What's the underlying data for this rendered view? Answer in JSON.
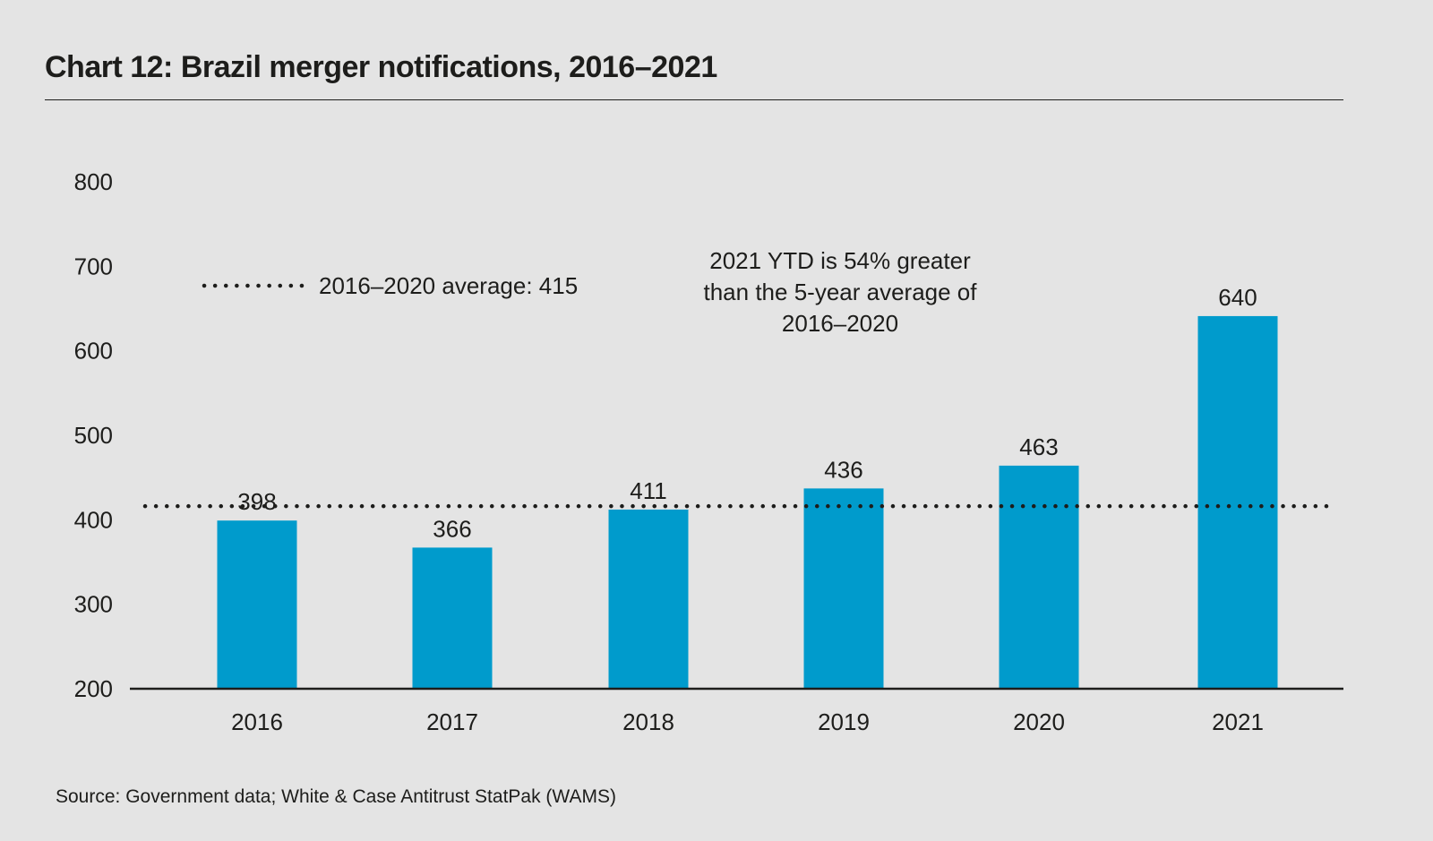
{
  "title": "Chart 12: Brazil merger notifications, 2016–2021",
  "source": "Source: Government data; White & Case Antitrust StatPak (WAMS)",
  "chart_data": {
    "type": "bar",
    "title": "Chart 12: Brazil merger notifications, 2016–2021",
    "xlabel": "",
    "ylabel": "",
    "categories": [
      "2016",
      "2017",
      "2018",
      "2019",
      "2020",
      "2021"
    ],
    "values": [
      398,
      366,
      411,
      436,
      463,
      640
    ],
    "data_labels": [
      "398",
      "366",
      "411",
      "436",
      "463",
      "640"
    ],
    "ylim": [
      200,
      800
    ],
    "yticks": [
      200,
      300,
      400,
      500,
      600,
      700,
      800
    ],
    "grid": false,
    "bar_color": "#009bcc",
    "reference_line": {
      "value": 415,
      "style": "dotted",
      "label": "2016–2020 average: 415"
    },
    "legend": {
      "placement": "top-left",
      "entries": [
        "2016–2020 average: 415"
      ]
    },
    "annotation": {
      "lines": [
        "2021 YTD is 54% greater",
        "than the 5-year average of",
        "2016–2020"
      ],
      "placement": "top-center"
    }
  }
}
